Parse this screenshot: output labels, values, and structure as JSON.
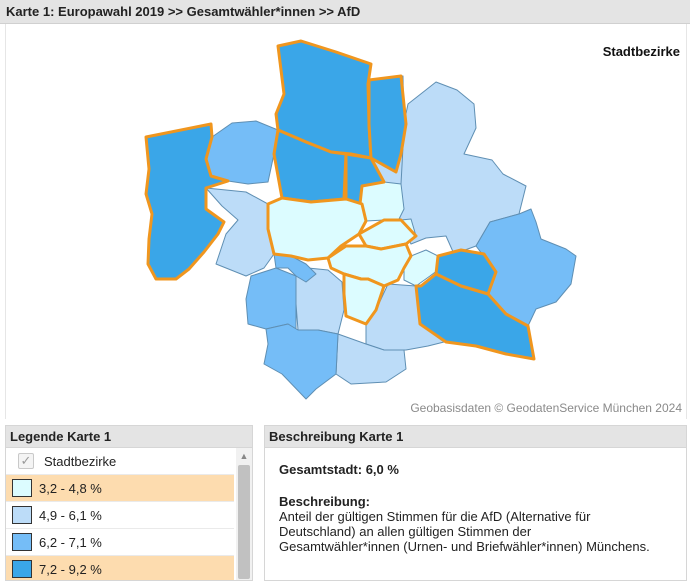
{
  "map_title": "Karte 1: Europawahl 2019 >> Gesamtwähler*innen >>  AfD",
  "layer_title": "Stadtbezirke",
  "attribution": "Geobasisdaten © GeodatenService München 2024",
  "colors": {
    "class_1": "#dcfcff",
    "class_2": "#bcdcf8",
    "class_3": "#75bdf7",
    "class_4": "#3aa6e8",
    "highlight_border": "#f0961e",
    "district_border": "#5f8fb3",
    "legend_highlight": "#fddcaf"
  },
  "legend": {
    "title": "Legende Karte 1",
    "layer_label": "Stadtbezirke",
    "layer_icon": "checkmark-icon",
    "classes": [
      {
        "label": "3,2 - 4,8 %",
        "color": "#dcfcff",
        "highlighted": true
      },
      {
        "label": "4,9 - 6,1 %",
        "color": "#bcdcf8",
        "highlighted": false
      },
      {
        "label": "6,2 - 7,1 %",
        "color": "#75bdf7",
        "highlighted": false
      },
      {
        "label": "7,2 - 9,2 %",
        "color": "#3aa6e8",
        "highlighted": true
      }
    ]
  },
  "description": {
    "title": "Beschreibung Karte 1",
    "total": "Gesamtstadt: 6,0 %",
    "label": "Beschreibung:",
    "lines": [
      "Anteil der gültigen Stimmen für die AfD (Alternative für",
      "Deutschland) an allen gültigen Stimmen der",
      "Gesamtwähler*innen (Urnen- und Briefwähler*innen) Münchens."
    ]
  }
}
